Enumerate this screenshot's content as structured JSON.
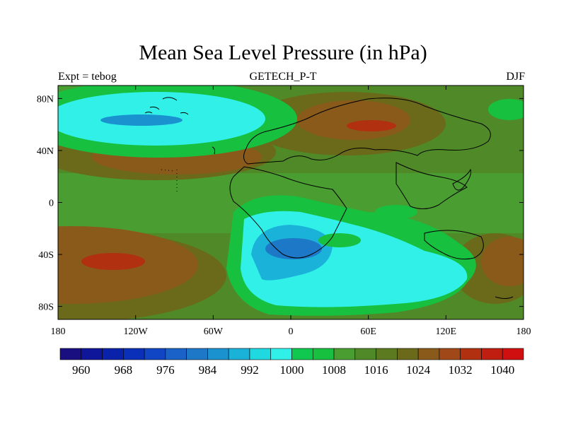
{
  "chart_data": {
    "type": "heatmap",
    "title": "Mean Sea Level Pressure (in hPa)",
    "subtitle": "GETECH_P-T",
    "left_string": "Expt = tebog",
    "right_string": "DJF",
    "x_ticks": [
      "180",
      "120W",
      "60W",
      "0",
      "60E",
      "120E",
      "180"
    ],
    "x_tick_values": [
      -180,
      -120,
      -60,
      0,
      60,
      120,
      180
    ],
    "y_ticks": [
      "80N",
      "40N",
      "0",
      "40S",
      "80S"
    ],
    "y_tick_values": [
      80,
      40,
      0,
      -40,
      -80
    ],
    "xlim": [
      -180,
      180
    ],
    "ylim": [
      -90,
      90
    ],
    "colorbar": {
      "labels": [
        "960",
        "968",
        "976",
        "984",
        "992",
        "1000",
        "1008",
        "1016",
        "1024",
        "1032",
        "1040"
      ],
      "levels": [
        960,
        964,
        968,
        972,
        976,
        980,
        984,
        988,
        992,
        996,
        1000,
        1004,
        1008,
        1012,
        1016,
        1020,
        1024,
        1028,
        1032,
        1036,
        1040
      ],
      "colors": [
        "#1a0f80",
        "#10169a",
        "#0a22aa",
        "#0a2fb8",
        "#1045c4",
        "#1a62c8",
        "#1e78c8",
        "#1a92d0",
        "#1ab2d8",
        "#20d8e0",
        "#30f0e8",
        "#10c850",
        "#18c040",
        "#4a9d30",
        "#508a28",
        "#5c7a20",
        "#6a6a1a",
        "#8a5a1a",
        "#a04818",
        "#b03010",
        "#c01e10",
        "#d01010"
      ]
    }
  }
}
